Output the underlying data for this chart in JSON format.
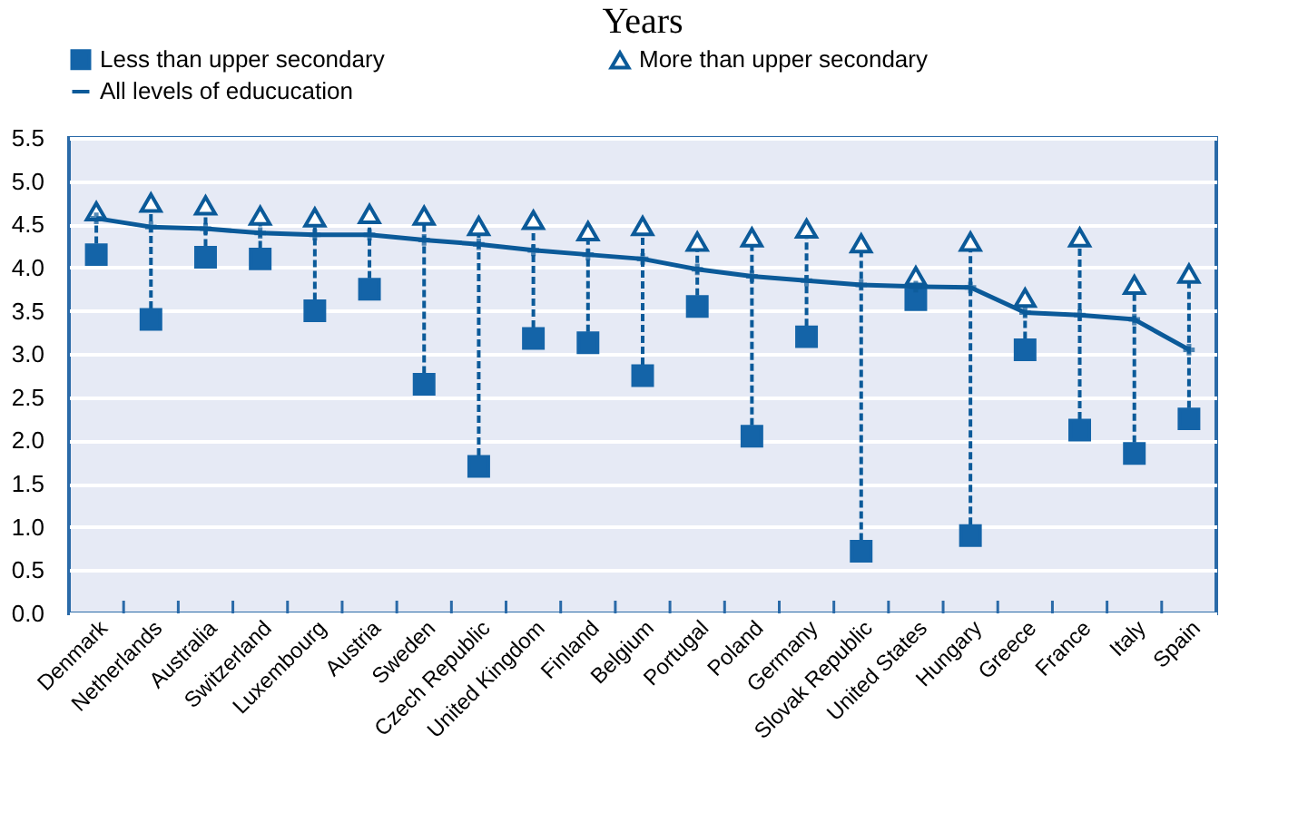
{
  "chart_data": {
    "type": "scatter",
    "title": "Years",
    "categories": [
      "Denmark",
      "Netherlands",
      "Australia",
      "Switzerland",
      "Luxembourg",
      "Austria",
      "Sweden",
      "Czech Republic",
      "United Kingdom",
      "Finland",
      "Belgium",
      "Portugal",
      "Poland",
      "Germany",
      "Slovak Republic",
      "United States",
      "Hungary",
      "Greece",
      "France",
      "Italy",
      "Spain"
    ],
    "series": [
      {
        "name": "Less than upper secondary",
        "type": "scatter",
        "marker": "square",
        "color": "#1464a8",
        "values": [
          4.15,
          3.4,
          4.12,
          4.1,
          3.5,
          3.75,
          2.65,
          1.7,
          3.18,
          3.13,
          2.75,
          3.55,
          2.05,
          3.2,
          0.72,
          3.63,
          0.9,
          3.05,
          2.12,
          1.85,
          2.25
        ]
      },
      {
        "name": "More than upper secondary",
        "type": "scatter",
        "marker": "triangle",
        "color": "#0b5a99",
        "values": [
          4.65,
          4.75,
          4.72,
          4.6,
          4.58,
          4.62,
          4.6,
          4.48,
          4.55,
          4.42,
          4.48,
          4.3,
          4.35,
          4.45,
          4.28,
          3.9,
          4.3,
          3.65,
          4.35,
          3.8,
          3.93
        ]
      },
      {
        "name": "All levels of educucation",
        "type": "line",
        "marker": "cross",
        "color": "#0b5a99",
        "values": [
          4.57,
          4.47,
          4.45,
          4.4,
          4.38,
          4.38,
          4.32,
          4.27,
          4.2,
          4.15,
          4.1,
          3.98,
          3.9,
          3.85,
          3.8,
          3.78,
          3.77,
          3.48,
          3.45,
          3.4,
          3.05
        ]
      }
    ],
    "ylim": [
      0,
      5.5
    ],
    "yticks": [
      {
        "value": 0,
        "label": "0.0"
      },
      0.5,
      {
        "value": 1,
        "label": "1.0"
      },
      1.5,
      {
        "value": 2,
        "label": "2.0"
      },
      2.5,
      {
        "value": 3,
        "label": "3.0"
      },
      3.5,
      {
        "value": 4,
        "label": "4.0"
      },
      4.5,
      {
        "value": 5,
        "label": "5.0"
      },
      5.5
    ],
    "grid": "y",
    "legend": "top"
  }
}
